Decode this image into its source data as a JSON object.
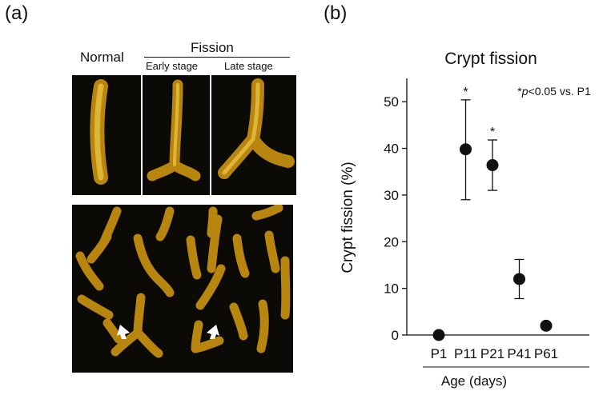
{
  "panel_a": {
    "label": "(a)",
    "normal_label": "Normal",
    "fission_label": "Fission",
    "early_label": "Early stage",
    "late_label": "Late stage"
  },
  "panel_b": {
    "label": "(b)"
  },
  "colors": {
    "crypt": "#d4a11a",
    "crypt_highlight": "#f3cf55",
    "background": "#0b0a06",
    "marker": "#111111"
  },
  "chart_data": {
    "type": "scatter",
    "title": "Crypt fission",
    "annotation": {
      "star": "*",
      "p": "p",
      "rest": "<0.05 vs. P1"
    },
    "xlabel": "Age (days)",
    "ylabel": "Crypt fission (%)",
    "categories": [
      "P1",
      "P11",
      "P21",
      "P41",
      "P61"
    ],
    "values": [
      0,
      39.8,
      36.4,
      12.0,
      2.0
    ],
    "error_low": [
      0,
      29.0,
      31.0,
      7.8,
      2.0
    ],
    "error_high": [
      0,
      50.4,
      41.8,
      16.2,
      2.0
    ],
    "significance": [
      "",
      "*",
      "*",
      "",
      ""
    ],
    "ylim": [
      0,
      55
    ],
    "yticks": [
      0,
      10,
      20,
      30,
      40,
      50
    ],
    "grid": false
  }
}
